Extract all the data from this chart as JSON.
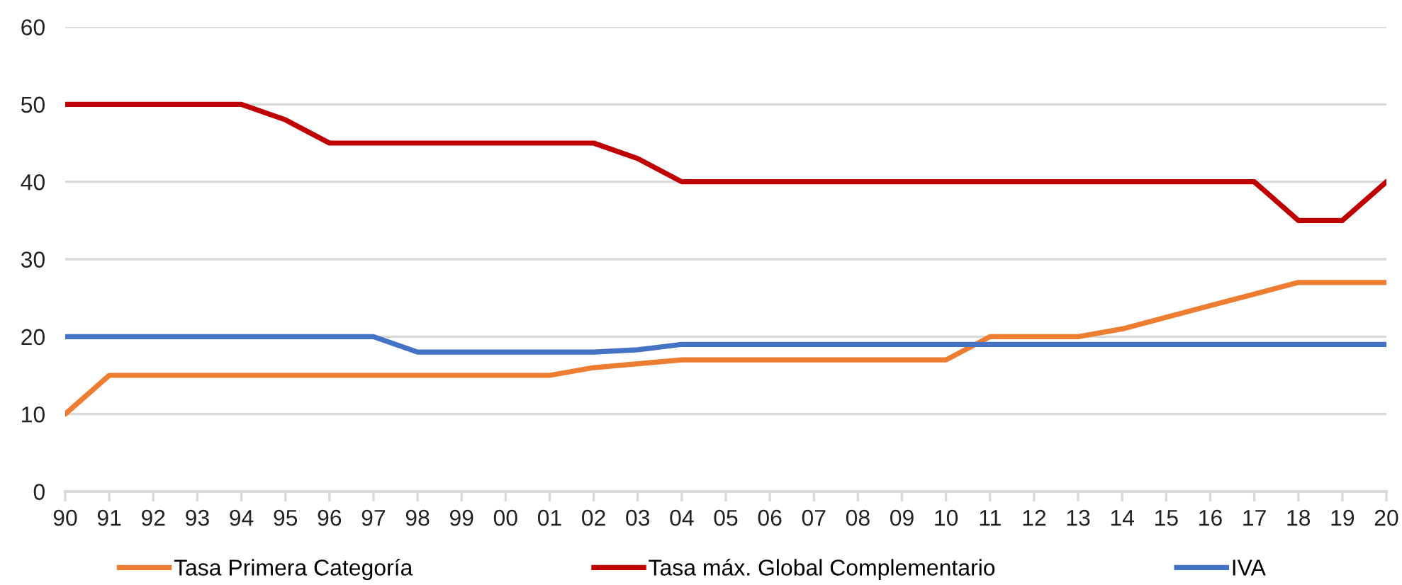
{
  "chart_data": {
    "type": "line",
    "categories": [
      "90",
      "91",
      "92",
      "93",
      "94",
      "95",
      "96",
      "97",
      "98",
      "99",
      "00",
      "01",
      "02",
      "03",
      "04",
      "05",
      "06",
      "07",
      "08",
      "09",
      "10",
      "11",
      "12",
      "13",
      "14",
      "15",
      "16",
      "17",
      "18",
      "19",
      "20"
    ],
    "series": [
      {
        "name": "Tasa Primera Categoría",
        "color": "#ed7d31",
        "values": [
          10,
          15,
          15,
          15,
          15,
          15,
          15,
          15,
          15,
          15,
          15,
          15,
          16,
          16.5,
          17,
          17,
          17,
          17,
          17,
          17,
          17,
          20,
          20,
          20,
          21,
          22.5,
          24,
          25.5,
          27,
          27,
          27
        ]
      },
      {
        "name": "Tasa máx. Global Complementario",
        "color": "#c00000",
        "values": [
          50,
          50,
          50,
          50,
          50,
          48,
          45,
          45,
          45,
          45,
          45,
          45,
          45,
          43,
          40,
          40,
          40,
          40,
          40,
          40,
          40,
          40,
          40,
          40,
          40,
          40,
          40,
          40,
          35,
          35,
          40
        ]
      },
      {
        "name": "IVA",
        "color": "#4472c4",
        "values": [
          20,
          20,
          20,
          20,
          20,
          20,
          20,
          20,
          18,
          18,
          18,
          18,
          18,
          18.3,
          19,
          19,
          19,
          19,
          19,
          19,
          19,
          19,
          19,
          19,
          19,
          19,
          19,
          19,
          19,
          19,
          19
        ]
      }
    ],
    "ylim": [
      0,
      60
    ],
    "yticks": [
      0,
      10,
      20,
      30,
      40,
      50,
      60
    ],
    "grid": "y",
    "legend": "bottom",
    "marker": "none",
    "line_style": "solid"
  }
}
